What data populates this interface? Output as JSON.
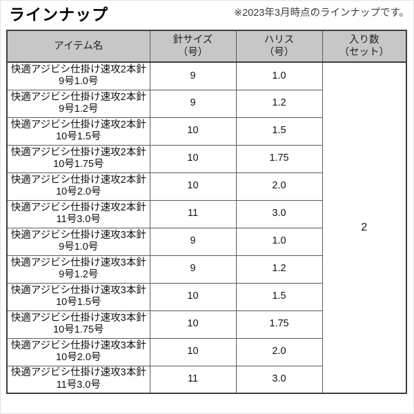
{
  "page": {
    "title": "ラインナップ",
    "note": "※2023年3月時点のラインナップです。"
  },
  "table": {
    "headers": {
      "item": "アイテム名",
      "hook_size": "針サイズ\n（号）",
      "harisu": "ハリス\n（号）",
      "quantity": "入り数\n（セット）"
    },
    "rows": [
      {
        "item": "快適アジビシ仕掛け速攻2本針\n9号1.0号",
        "hook_size": "9",
        "harisu": "1.0"
      },
      {
        "item": "快適アジビシ仕掛け速攻2本針\n9号1.2号",
        "hook_size": "9",
        "harisu": "1.2"
      },
      {
        "item": "快適アジビシ仕掛け速攻2本針\n10号1.5号",
        "hook_size": "10",
        "harisu": "1.5"
      },
      {
        "item": "快適アジビシ仕掛け速攻2本針\n10号1.75号",
        "hook_size": "10",
        "harisu": "1.75"
      },
      {
        "item": "快適アジビシ仕掛け速攻2本針\n10号2.0号",
        "hook_size": "10",
        "harisu": "2.0"
      },
      {
        "item": "快適アジビシ仕掛け速攻2本針\n11号3.0号",
        "hook_size": "11",
        "harisu": "3.0"
      },
      {
        "item": "快適アジビシ仕掛け速攻3本針\n9号1.0号",
        "hook_size": "9",
        "harisu": "1.0"
      },
      {
        "item": "快適アジビシ仕掛け速攻3本針\n9号1.2号",
        "hook_size": "9",
        "harisu": "1.2"
      },
      {
        "item": "快適アジビシ仕掛け速攻3本針\n10号1.5号",
        "hook_size": "10",
        "harisu": "1.5"
      },
      {
        "item": "快適アジビシ仕掛け速攻3本針\n10号1.75号",
        "hook_size": "10",
        "harisu": "1.75"
      },
      {
        "item": "快適アジビシ仕掛け速攻3本針\n10号2.0号",
        "hook_size": "10",
        "harisu": "2.0"
      },
      {
        "item": "快適アジビシ仕掛け速攻3本針\n11号3.0号",
        "hook_size": "11",
        "harisu": "3.0"
      }
    ],
    "quantity_merged": "2"
  },
  "colors": {
    "header_bg": "#c7c7c7",
    "border_inner": "#595959",
    "border_outer": "#3c3c3c",
    "text": "#111111"
  }
}
